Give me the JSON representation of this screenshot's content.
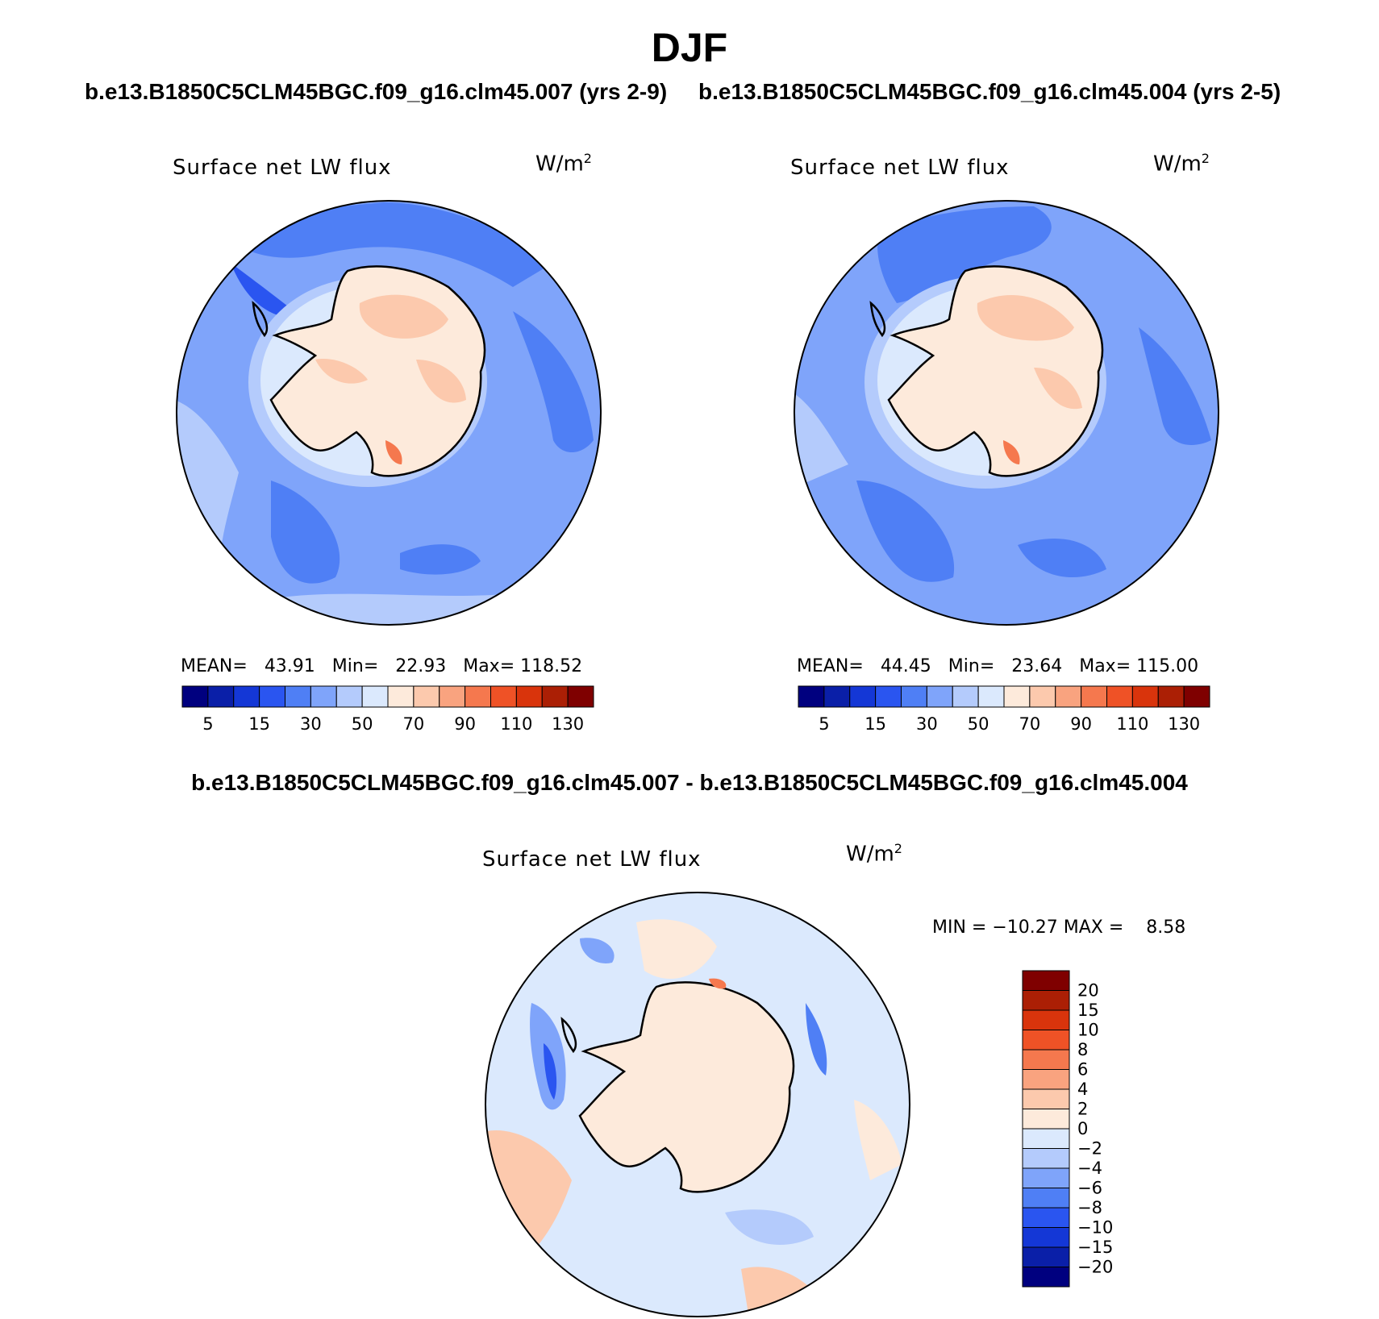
{
  "figure": {
    "title": "DJF",
    "case_a": "b.e13.B1850C5CLM45BGC.f09_g16.clm45.007 (yrs 2-9)",
    "case_b": "b.e13.B1850C5CLM45BGC.f09_g16.clm45.004 (yrs 2-5)",
    "diff_title": "b.e13.B1850C5CLM45BGC.f09_g16.clm45.007 - b.e13.B1850C5CLM45BGC.f09_g16.clm45.004"
  },
  "panels": [
    {
      "variable": "Surface net LW flux",
      "units_label": "W/m",
      "units_exp": "2",
      "mean_label": "MEAN=",
      "mean": "43.91",
      "min_label": "Min=",
      "min": "22.93",
      "max_label": "Max=",
      "max": "118.52"
    },
    {
      "variable": "Surface net LW flux",
      "units_label": "W/m",
      "units_exp": "2",
      "mean_label": "MEAN=",
      "mean": "44.45",
      "min_label": "Min=",
      "min": "23.64",
      "max_label": "Max=",
      "max": "115.00"
    }
  ],
  "diff_panel": {
    "variable": "Surface net LW flux",
    "units_label": "W/m",
    "units_exp": "2",
    "minmax_text": "MIN = −10.27 MAX =    8.58"
  },
  "colorbar_main": {
    "tick_labels": [
      "5",
      "15",
      "30",
      "50",
      "70",
      "90",
      "110",
      "130"
    ],
    "colors": [
      "#00007f",
      "#0a1fa8",
      "#1437d6",
      "#2a55f0",
      "#4f7ff5",
      "#7fa4fa",
      "#b4cbfc",
      "#dbe9fd",
      "#fdeadb",
      "#fcc9ad",
      "#f9a37f",
      "#f5784e",
      "#ef5226",
      "#d9340c",
      "#ab1f05",
      "#7f0000"
    ]
  },
  "colorbar_diff": {
    "tick_labels": [
      "20",
      "15",
      "10",
      "8",
      "6",
      "4",
      "2",
      "0",
      "−2",
      "−4",
      "−6",
      "−8",
      "−10",
      "−15",
      "−20"
    ],
    "colors": [
      "#7f0000",
      "#ab1f05",
      "#d9340c",
      "#ef5226",
      "#f5784e",
      "#f9a37f",
      "#fcc9ad",
      "#fdeadb",
      "#dbe9fd",
      "#b4cbfc",
      "#7fa4fa",
      "#4f7ff5",
      "#2a55f0",
      "#1437d6",
      "#0a1fa8",
      "#00007f"
    ]
  }
}
